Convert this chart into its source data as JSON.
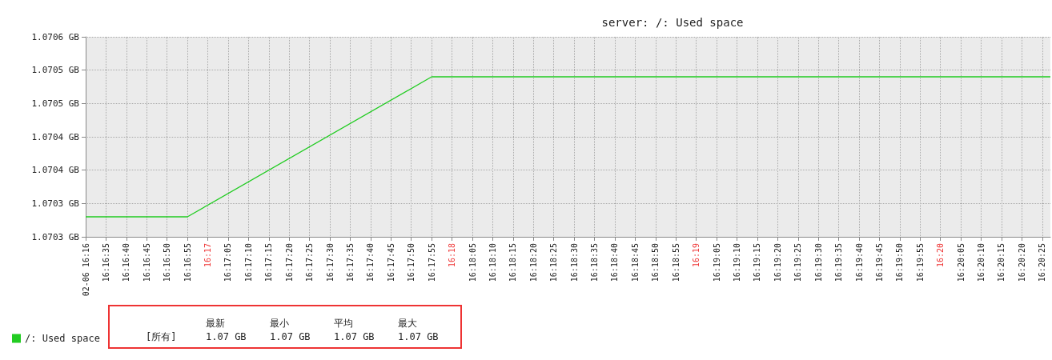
{
  "chart_data": {
    "type": "line",
    "title": "server: /: Used space",
    "x": [
      16.275,
      16.281944,
      16.298611,
      16.340833
    ],
    "series": [
      {
        "name": "/: Used space",
        "color": "#22cc22",
        "values": [
          1.07028,
          1.07028,
          1.07049,
          1.07049
        ]
      }
    ],
    "xlim": [
      16.275,
      16.340833
    ],
    "xticks": [
      {
        "value": 16.275,
        "label": "02-06 16:16"
      },
      {
        "value": 16.276389,
        "label": "16:16:35"
      },
      {
        "value": 16.277778,
        "label": "16:16:40"
      },
      {
        "value": 16.279167,
        "label": "16:16:45"
      },
      {
        "value": 16.280556,
        "label": "16:16:50"
      },
      {
        "value": 16.281944,
        "label": "16:16:55"
      },
      {
        "value": 16.283333,
        "label": "16:17"
      },
      {
        "value": 16.284722,
        "label": "16:17:05"
      },
      {
        "value": 16.286111,
        "label": "16:17:10"
      },
      {
        "value": 16.2875,
        "label": "16:17:15"
      },
      {
        "value": 16.288889,
        "label": "16:17:20"
      },
      {
        "value": 16.290278,
        "label": "16:17:25"
      },
      {
        "value": 16.291667,
        "label": "16:17:30"
      },
      {
        "value": 16.293056,
        "label": "16:17:35"
      },
      {
        "value": 16.294444,
        "label": "16:17:40"
      },
      {
        "value": 16.295833,
        "label": "16:17:45"
      },
      {
        "value": 16.297222,
        "label": "16:17:50"
      },
      {
        "value": 16.298611,
        "label": "16:17:55"
      },
      {
        "value": 16.3,
        "label": "16:18"
      },
      {
        "value": 16.301389,
        "label": "16:18:05"
      },
      {
        "value": 16.302778,
        "label": "16:18:10"
      },
      {
        "value": 16.304167,
        "label": "16:18:15"
      },
      {
        "value": 16.305556,
        "label": "16:18:20"
      },
      {
        "value": 16.306944,
        "label": "16:18:25"
      },
      {
        "value": 16.308333,
        "label": "16:18:30"
      },
      {
        "value": 16.309722,
        "label": "16:18:35"
      },
      {
        "value": 16.311111,
        "label": "16:18:40"
      },
      {
        "value": 16.3125,
        "label": "16:18:45"
      },
      {
        "value": 16.313889,
        "label": "16:18:50"
      },
      {
        "value": 16.315278,
        "label": "16:18:55"
      },
      {
        "value": 16.316667,
        "label": "16:19"
      },
      {
        "value": 16.318056,
        "label": "16:19:05"
      },
      {
        "value": 16.319444,
        "label": "16:19:10"
      },
      {
        "value": 16.320833,
        "label": "16:19:15"
      },
      {
        "value": 16.322222,
        "label": "16:19:20"
      },
      {
        "value": 16.323611,
        "label": "16:19:25"
      },
      {
        "value": 16.325,
        "label": "16:19:30"
      },
      {
        "value": 16.326389,
        "label": "16:19:35"
      },
      {
        "value": 16.327778,
        "label": "16:19:40"
      },
      {
        "value": 16.329167,
        "label": "16:19:45"
      },
      {
        "value": 16.330556,
        "label": "16:19:50"
      },
      {
        "value": 16.331944,
        "label": "16:19:55"
      },
      {
        "value": 16.333333,
        "label": "16:20"
      },
      {
        "value": 16.334722,
        "label": "16:20:05"
      },
      {
        "value": 16.336111,
        "label": "16:20:10"
      },
      {
        "value": 16.3375,
        "label": "16:20:15"
      },
      {
        "value": 16.338889,
        "label": "16:20:20"
      },
      {
        "value": 16.340278,
        "label": "16:20:25"
      }
    ],
    "ylim": [
      1.07025,
      1.07055
    ],
    "yticks": [
      {
        "value": 1.07025,
        "label": "1.0703 GB"
      },
      {
        "value": 1.0703,
        "label": "1.0703 GB"
      },
      {
        "value": 1.07035,
        "label": "1.0704 GB"
      },
      {
        "value": 1.0704,
        "label": "1.0704 GB"
      },
      {
        "value": 1.07045,
        "label": "1.0705 GB"
      },
      {
        "value": 1.0705,
        "label": "1.0705 GB"
      },
      {
        "value": 1.07055,
        "label": "1.0706 GB"
      }
    ],
    "grid": true,
    "legend": "bottom left",
    "marker": "none",
    "line_style": "solid",
    "annotations": [
      "[所有]",
      "最新",
      "最小",
      "平均",
      "最大",
      "1.07 GB",
      "1.07 GB",
      "1.07 GB",
      "1.07 GB"
    ]
  }
}
